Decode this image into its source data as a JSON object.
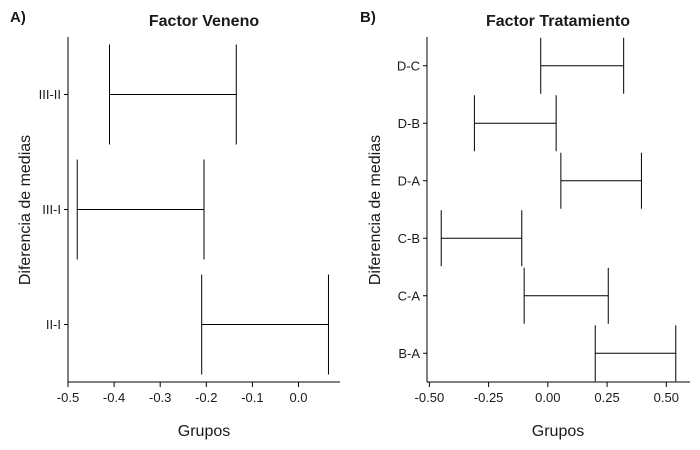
{
  "panels": [
    {
      "letter": "A)",
      "chart_data": {
        "type": "interval",
        "title": "Factor Veneno",
        "xlabel": "Grupos",
        "ylabel": "Diferencia de medias",
        "xlim": [
          -0.5,
          0.09
        ],
        "xticks": [
          -0.5,
          -0.4,
          -0.3,
          -0.2,
          -0.1,
          0.0
        ],
        "xtick_labels": [
          "-0.5",
          "-0.4",
          "-0.3",
          "-0.2",
          "-0.1",
          "0.0"
        ],
        "categories": [
          "III-II",
          "III-I",
          "II-I"
        ],
        "lower": [
          -0.41,
          -0.48,
          -0.21
        ],
        "upper": [
          -0.135,
          -0.205,
          0.065
        ],
        "grid": false
      }
    },
    {
      "letter": "B)",
      "chart_data": {
        "type": "interval",
        "title": "Factor Tratamiento",
        "xlabel": "Grupos",
        "ylabel": "Diferencia de medias",
        "xlim": [
          -0.51,
          0.6
        ],
        "xticks": [
          -0.5,
          -0.25,
          0.0,
          0.25,
          0.5
        ],
        "xtick_labels": [
          "-0.50",
          "-0.25",
          "0.00",
          "0.25",
          "0.50"
        ],
        "categories": [
          "D-C",
          "D-B",
          "D-A",
          "C-B",
          "C-A",
          "B-A"
        ],
        "lower": [
          -0.03,
          -0.31,
          0.055,
          -0.45,
          -0.1,
          0.2
        ],
        "upper": [
          0.32,
          0.035,
          0.395,
          -0.11,
          0.255,
          0.54
        ],
        "grid": false
      }
    }
  ]
}
